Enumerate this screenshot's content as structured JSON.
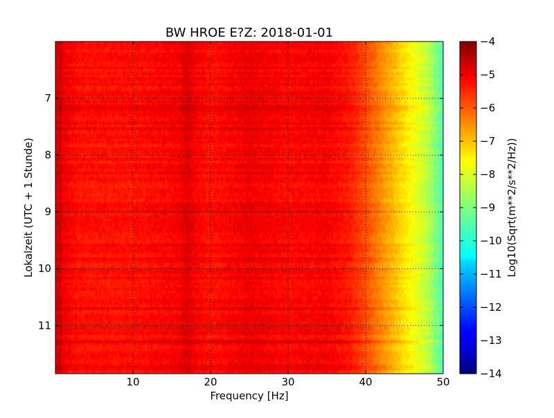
{
  "chart_data": {
    "type": "heatmap",
    "title": "BW HROE E?Z: 2018-01-01",
    "xlabel": "Frequency [Hz]",
    "ylabel": "Lokalzeit (UTC + 1 Stunde)",
    "xlim": [
      0,
      50
    ],
    "ylim": [
      6.0,
      11.85
    ],
    "y_inverted": true,
    "x_ticks": [
      10,
      20,
      30,
      40,
      50
    ],
    "x_tick_labels": [
      "10",
      "20",
      "30",
      "40",
      "50"
    ],
    "y_ticks": [
      7,
      8,
      9,
      10,
      11
    ],
    "y_tick_labels": [
      "7",
      "8",
      "9",
      "10",
      "11"
    ],
    "grid": true,
    "grid_style": "dotted",
    "colormap": "jet",
    "colorbar": {
      "label": "Log10(Sqrt(m**2/s**2/Hz))",
      "range": [
        -14,
        -4
      ],
      "ticks": [
        -4,
        -5,
        -6,
        -7,
        -8,
        -9,
        -10,
        -11,
        -12,
        -13,
        -14
      ],
      "tick_labels": [
        "−4",
        "−5",
        "−6",
        "−7",
        "−8",
        "−9",
        "−10",
        "−11",
        "−12",
        "−13",
        "−14"
      ]
    },
    "spectrum_profile": {
      "frequency_hz": [
        0,
        0.5,
        1,
        3,
        10,
        16,
        17,
        18,
        20,
        25,
        30,
        35,
        38,
        40,
        42,
        44,
        46,
        48,
        50
      ],
      "log10_amplitude": [
        -5.0,
        -4.7,
        -5.1,
        -5.4,
        -5.4,
        -5.2,
        -4.9,
        -5.2,
        -5.4,
        -5.1,
        -5.3,
        -5.2,
        -5.5,
        -6.0,
        -6.6,
        -7.2,
        -7.8,
        -8.4,
        -9.5
      ]
    }
  }
}
